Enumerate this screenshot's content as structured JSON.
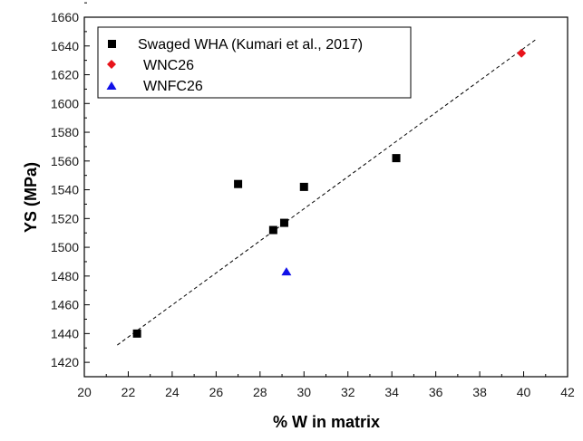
{
  "chart_data": {
    "type": "scatter",
    "xlabel": "% W in matrix",
    "ylabel": "YS (MPa)",
    "xlim": [
      20,
      42
    ],
    "ylim": [
      1410,
      1660
    ],
    "xticks": [
      20,
      22,
      24,
      26,
      28,
      30,
      32,
      34,
      36,
      38,
      40,
      42
    ],
    "yticks": [
      1420,
      1440,
      1460,
      1480,
      1500,
      1520,
      1540,
      1560,
      1580,
      1600,
      1620,
      1640,
      1660
    ],
    "grid": false,
    "legend_position": "top-left",
    "series": [
      {
        "name": "Swaged WHA (Kumari et al., 2017)",
        "marker": "square",
        "color": "#000000",
        "points": [
          {
            "x": 22.4,
            "y": 1440
          },
          {
            "x": 27.0,
            "y": 1544
          },
          {
            "x": 28.6,
            "y": 1512
          },
          {
            "x": 29.1,
            "y": 1517
          },
          {
            "x": 30.0,
            "y": 1542
          },
          {
            "x": 34.2,
            "y": 1562
          }
        ]
      },
      {
        "name": "WNC26",
        "marker": "diamond",
        "color": "#e8141b",
        "points": [
          {
            "x": 39.9,
            "y": 1635
          }
        ]
      },
      {
        "name": "WNFC26",
        "marker": "triangle",
        "color": "#1010e8",
        "points": [
          {
            "x": 29.2,
            "y": 1483
          }
        ]
      }
    ],
    "trendline": {
      "style": "dashed",
      "color": "#000000",
      "x_start": 21.5,
      "y_start": 1432,
      "x_end": 40.6,
      "y_end": 1645
    }
  }
}
